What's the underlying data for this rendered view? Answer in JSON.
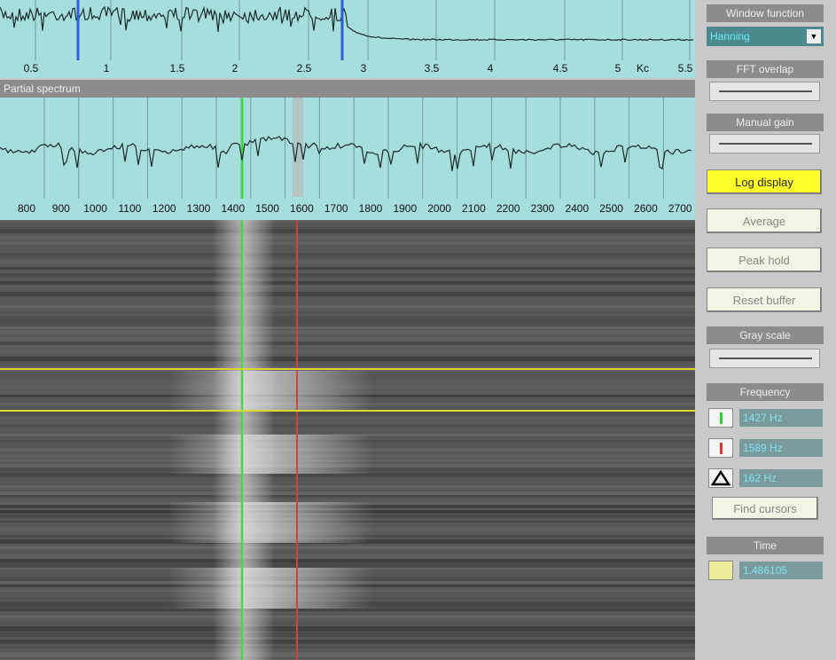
{
  "top_spectrum": {
    "axis_labels": [
      "0.5",
      "1",
      "1.5",
      "2",
      "2.5",
      "3",
      "3.5",
      "4",
      "4.5",
      "5",
      "Kc",
      "5.5"
    ]
  },
  "partial_spectrum": {
    "title": "Partial spectrum",
    "axis_labels": [
      "800",
      "900",
      "1000",
      "1100",
      "1200",
      "1300",
      "1400",
      "1500",
      "1600",
      "1700",
      "1800",
      "1900",
      "2000",
      "2100",
      "2200",
      "2300",
      "2400",
      "2500",
      "2600",
      "2700"
    ]
  },
  "controls": {
    "window_function": {
      "label": "Window function",
      "value": "Hanning"
    },
    "fft_overlap": {
      "label": "FFT overlap"
    },
    "manual_gain": {
      "label": "Manual gain"
    },
    "buttons": [
      "Log display",
      "Average",
      "Peak hold",
      "Reset buffer"
    ],
    "gray_scale": {
      "label": "Gray scale"
    },
    "frequency": {
      "label": "Frequency",
      "cursor1": "1427 Hz",
      "cursor2": "1589 Hz",
      "delta": "162 Hz",
      "find_button": "Find cursors"
    },
    "time": {
      "label": "Time",
      "value": "1.486105"
    }
  }
}
